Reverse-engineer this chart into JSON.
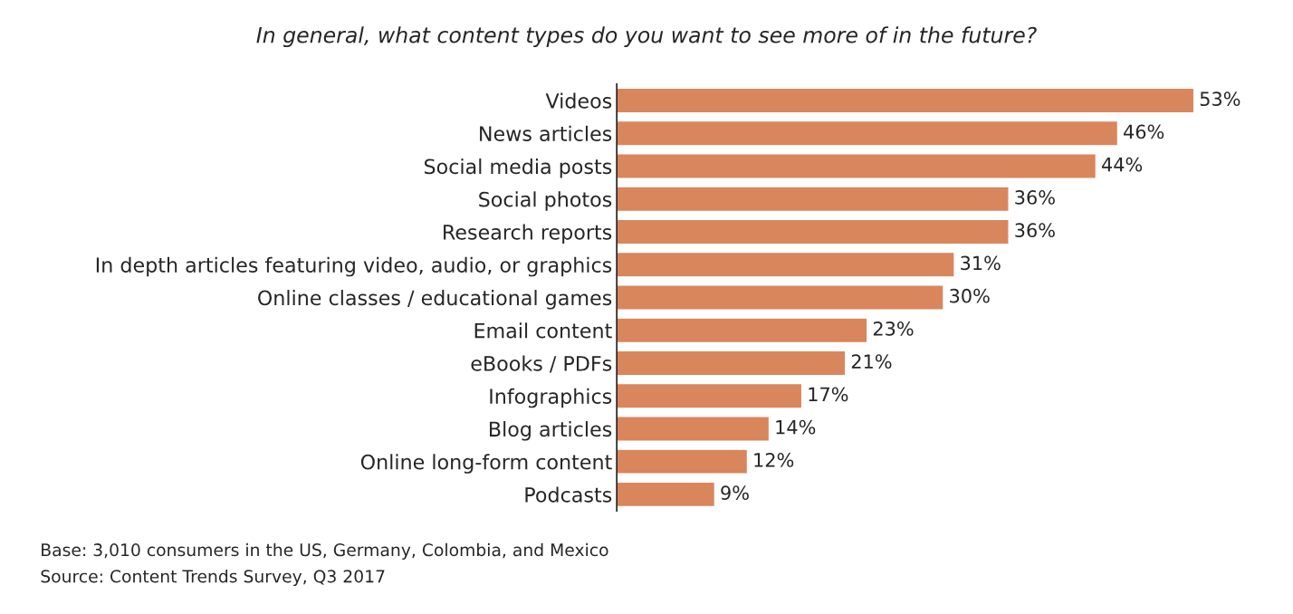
{
  "chart_data": {
    "type": "bar",
    "orientation": "horizontal",
    "title": "In general, what content types do you want to see more of in the future?",
    "categories": [
      "Videos",
      "News articles",
      "Social media posts",
      "Social photos",
      "Research reports",
      "In depth articles featuring video, audio, or graphics",
      "Online classes / educational games",
      "Email content",
      "eBooks / PDFs",
      "Infographics",
      "Blog articles",
      "Online long-form content",
      "Podcasts"
    ],
    "values": [
      53,
      46,
      44,
      36,
      36,
      31,
      30,
      23,
      21,
      17,
      14,
      12,
      9
    ],
    "value_labels": [
      "53%",
      "46%",
      "44%",
      "36%",
      "36%",
      "31%",
      "30%",
      "23%",
      "21%",
      "17%",
      "14%",
      "12%",
      "9%"
    ],
    "color": "#d9865d",
    "tick_labels": "y",
    "grid": false,
    "legend": false,
    "annotations": [
      "Base: 3,010 consumers in the US, Germany, Colombia, and Mexico",
      "Source: Content Trends Survey, Q3 2017"
    ]
  }
}
